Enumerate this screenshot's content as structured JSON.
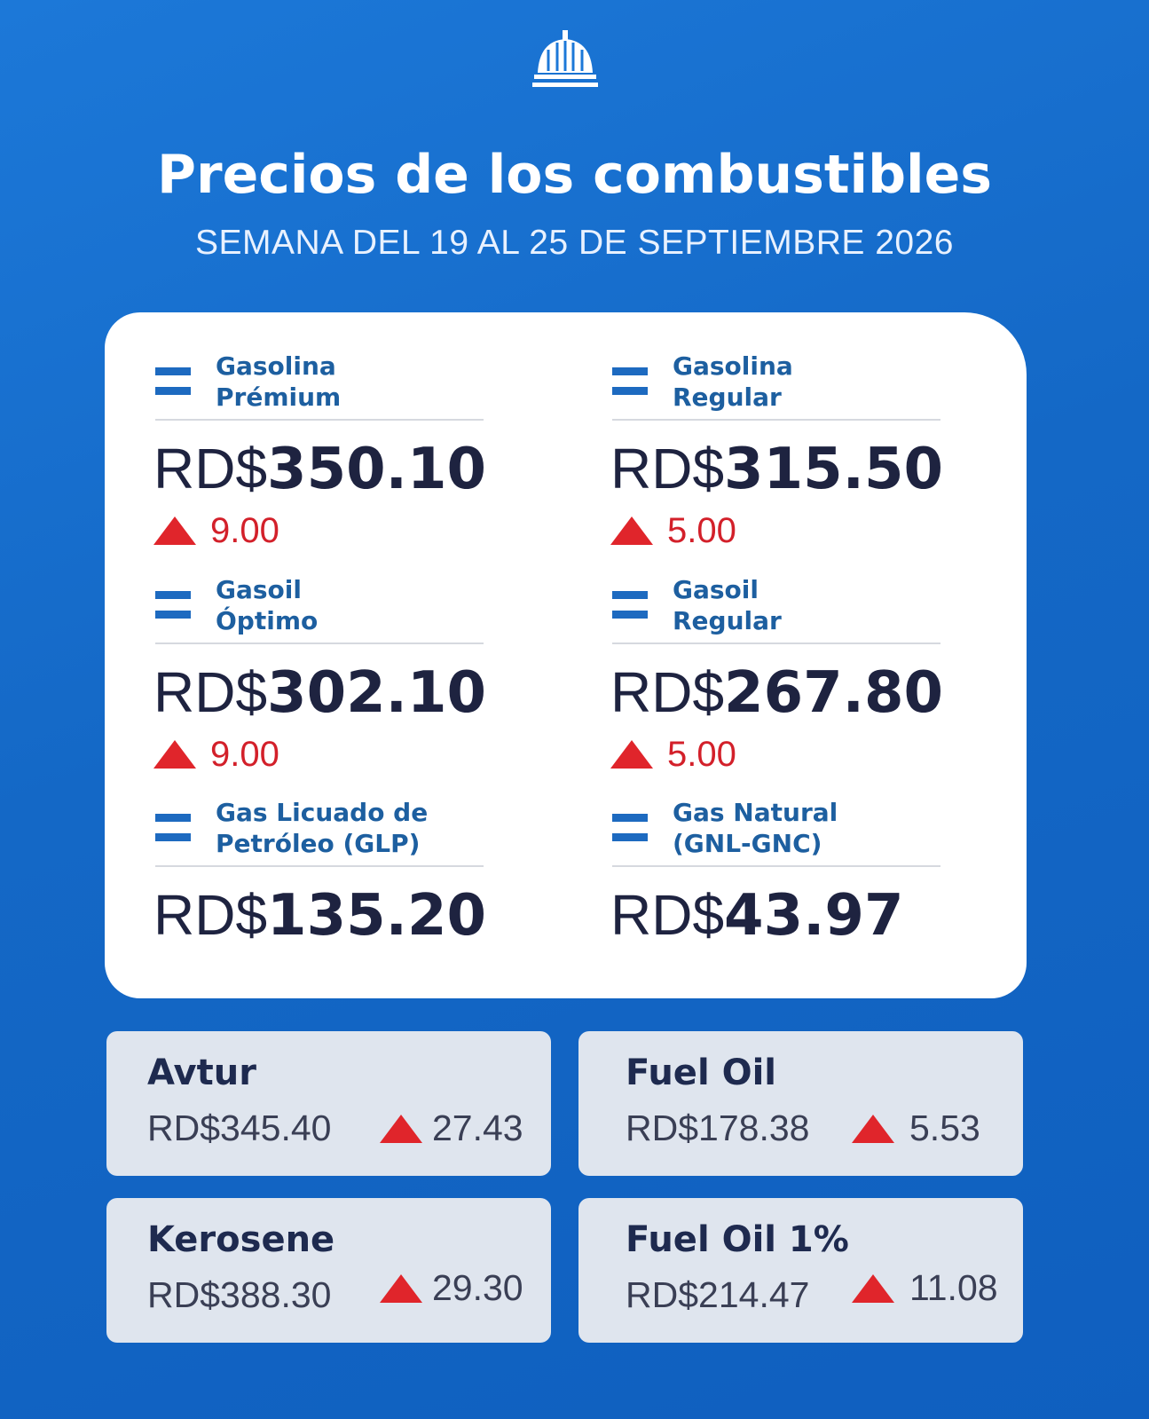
{
  "header": {
    "title": "Precios de los combustibles",
    "subtitle": "SEMANA DEL 19 AL 25 DE SEPTIEMBRE 2026"
  },
  "main_prices": [
    {
      "name": [
        "Gasolina",
        "Prémium"
      ],
      "currency": "RD$",
      "price": "350.10",
      "change": "9.00"
    },
    {
      "name": [
        "Gasolina",
        "Regular"
      ],
      "currency": "RD$",
      "price": "315.50",
      "change": "5.00"
    },
    {
      "name": [
        "Gasoil",
        "Óptimo"
      ],
      "currency": "RD$",
      "price": "302.10",
      "change": "9.00"
    },
    {
      "name": [
        "Gasoil",
        "Regular"
      ],
      "currency": "RD$",
      "price": "267.80",
      "change": "5.00"
    },
    {
      "name": [
        "Gas Licuado de",
        "Petróleo (GLP)"
      ],
      "currency": "RD$",
      "price": "135.20"
    },
    {
      "name": [
        "Gas Natural",
        "(GNL-GNC)"
      ],
      "currency": "RD$",
      "price": "43.97"
    }
  ],
  "other_prices": [
    {
      "name": "Avtur",
      "currency": "RD$",
      "price": "345.40",
      "change": "27.43"
    },
    {
      "name": "Fuel Oil",
      "currency": "RD$",
      "price": "178.38",
      "change": "5.53"
    },
    {
      "name": "Kerosene",
      "currency": "RD$",
      "price": "388.30",
      "change": "29.30"
    },
    {
      "name": "Fuel Oil 1%",
      "currency": "RD$",
      "price": "214.47",
      "change": "11.08"
    }
  ]
}
